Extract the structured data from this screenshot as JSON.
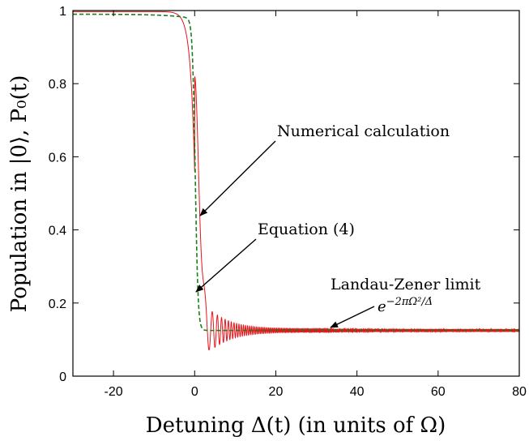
{
  "chart_data": {
    "type": "line",
    "xlabel": "Detuning Δ(t) (in units of Ω)",
    "ylabel": "Population in |0⟩, P₀(t)",
    "xlim": [
      -30,
      80
    ],
    "ylim": [
      0,
      1
    ],
    "x_ticks": [
      "-20",
      "0",
      "20",
      "40",
      "60",
      "80"
    ],
    "x_tick_values": [
      -20,
      0,
      20,
      40,
      60,
      80
    ],
    "y_ticks": [
      "0",
      "0.2",
      "0.4",
      "0.6",
      "0.8",
      "1"
    ],
    "y_tick_values": [
      0,
      0.2,
      0.4,
      0.6,
      0.8,
      1
    ],
    "grid": false,
    "landau_zener_limit": 0.125,
    "series": [
      {
        "style": "solid",
        "color": "#e8141c",
        "description_points": [
          {
            "x": -30,
            "y": 0.995
          },
          {
            "x": -10,
            "y": 0.99
          },
          {
            "x": -5,
            "y": 0.98
          },
          {
            "x": -2,
            "y": 0.93
          },
          {
            "x": 0,
            "y": 0.82
          },
          {
            "x": 0.5,
            "y": 0.6
          },
          {
            "x": 1.3,
            "y": 0.43
          },
          {
            "x": 2.2,
            "y": 0.21
          },
          {
            "x": 3.2,
            "y": 0.01
          },
          {
            "x": 5.8,
            "y": 0.26
          },
          {
            "x": 80,
            "y": 0.125
          }
        ]
      },
      {
        "style": "dashed",
        "color": "#1a7f1a",
        "description_points": [
          {
            "x": -30,
            "y": 0.99
          },
          {
            "x": -10,
            "y": 0.985
          },
          {
            "x": -5,
            "y": 0.97
          },
          {
            "x": -2,
            "y": 0.92
          },
          {
            "x": 0,
            "y": 0.56
          },
          {
            "x": 1,
            "y": 0.18
          },
          {
            "x": 2,
            "y": 0.135
          },
          {
            "x": 80,
            "y": 0.125
          }
        ]
      }
    ],
    "annotations": [
      {
        "text": "Numerical calculation",
        "target_x": 1.0,
        "target_y": 0.44
      },
      {
        "text": "Equation (4)",
        "target_x": 0.2,
        "target_y": 0.23
      },
      {
        "text": "Landau-Zener limit",
        "target_x": 33,
        "target_y": 0.125
      },
      {
        "text": "e^{-2πΩ²/Δ̇}",
        "formula": true
      }
    ]
  },
  "colors": {
    "numerical": "#e8141c",
    "equation": "#1a7f1a",
    "axis": "#000000"
  }
}
